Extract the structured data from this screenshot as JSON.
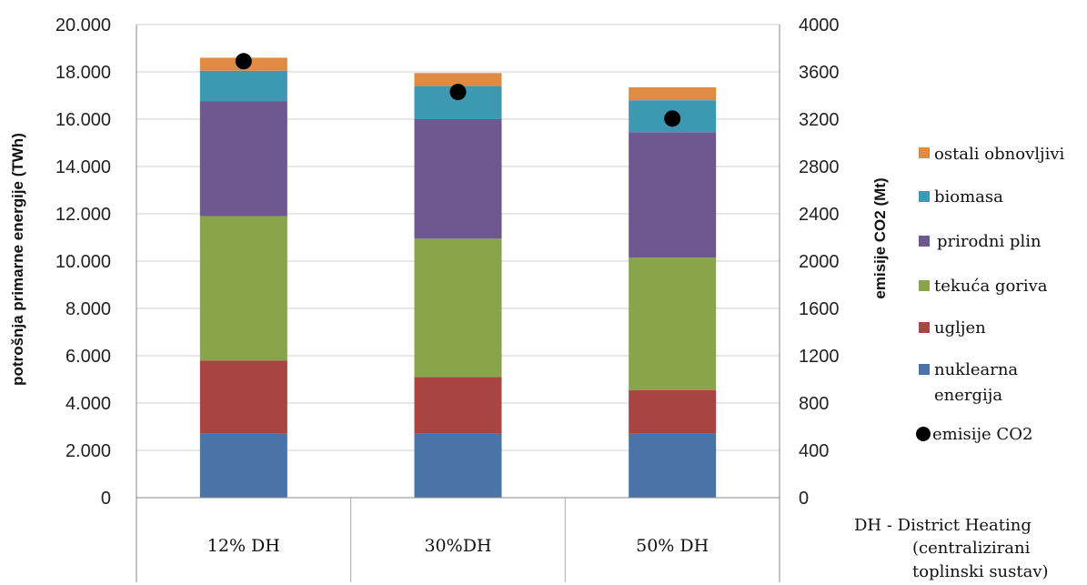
{
  "chart_data": {
    "type": "bar",
    "stacked": true,
    "categories": [
      "12% DH",
      "30%DH",
      "50% DH"
    ],
    "series": [
      {
        "name": "nuklearna energija",
        "color": "#4a74a8",
        "values": [
          2700,
          2700,
          2700
        ]
      },
      {
        "name": "ugljen",
        "color": "#a84442",
        "values": [
          3100,
          2400,
          1850
        ]
      },
      {
        "name": "tekuća goriva",
        "color": "#88a54b",
        "values": [
          6100,
          5850,
          5600
        ]
      },
      {
        "name": "prirodni plin",
        "color": "#6e5890",
        "values": [
          4850,
          5050,
          5300
        ]
      },
      {
        "name": "biomasa",
        "color": "#3d98b2",
        "values": [
          1300,
          1400,
          1350
        ]
      },
      {
        "name": "ostali obnovljivi",
        "color": "#e08b42",
        "values": [
          550,
          550,
          550
        ]
      }
    ],
    "co2_series": {
      "name": "emisije CO2",
      "color": "#000000",
      "values": [
        3690,
        3430,
        3205
      ]
    },
    "ylabel": "potrošnja primarne energije (TWh)",
    "y2label": "emisije CO2 (Mt)",
    "ylim": [
      0,
      20000
    ],
    "y2lim": [
      0,
      4000
    ],
    "yticks": [
      "0",
      "2.000",
      "4.000",
      "6.000",
      "8.000",
      "10.000",
      "12.000",
      "14.000",
      "16.000",
      "18.000",
      "20.000"
    ],
    "y2ticks": [
      "0",
      "400",
      "800",
      "1200",
      "1600",
      "2000",
      "2400",
      "2800",
      "3200",
      "3600",
      "4000"
    ],
    "legend_position": "right",
    "legend": [
      "ostali obnovljivi",
      "biomasa",
      "prirodni plin",
      "tekuća goriva",
      "ugljen",
      "nuklearna",
      "energija",
      "emisije CO2"
    ],
    "note": [
      "DH - District Heating",
      "(centralizirani",
      "toplinski sustav)"
    ]
  }
}
